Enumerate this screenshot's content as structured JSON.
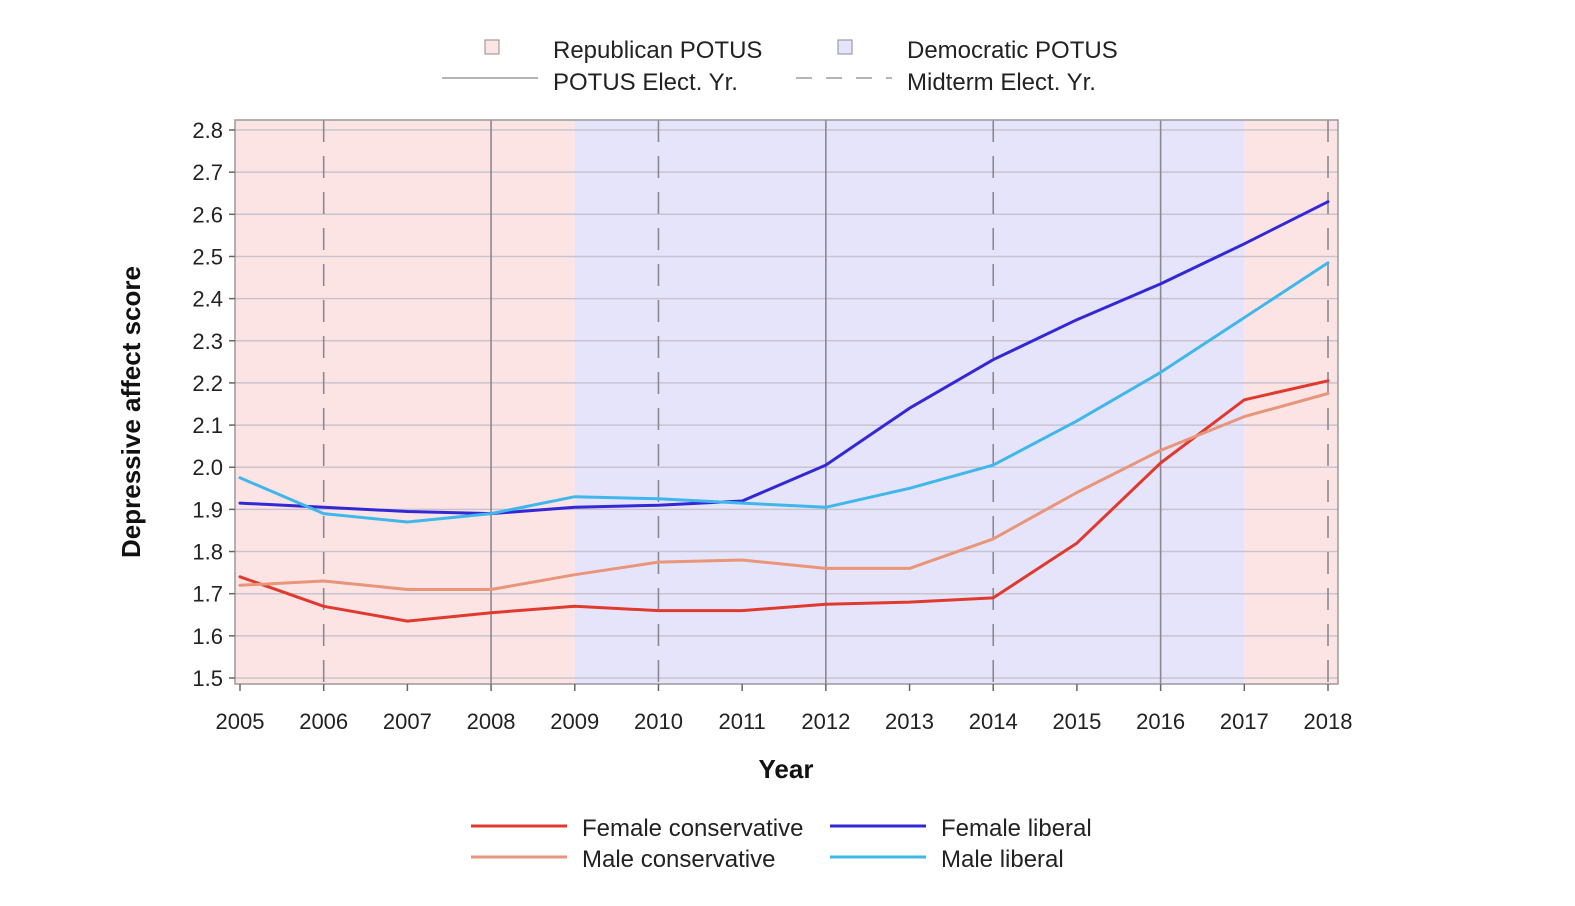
{
  "chart_data": {
    "type": "line",
    "title": "",
    "xlabel": "Year",
    "ylabel": "Depressive affect score",
    "x": [
      2005,
      2006,
      2007,
      2008,
      2009,
      2010,
      2011,
      2012,
      2013,
      2014,
      2015,
      2016,
      2017,
      2018
    ],
    "xlim": [
      2005,
      2018
    ],
    "ylim": [
      1.5,
      2.8
    ],
    "yticks": [
      "1.5",
      "1.6",
      "1.7",
      "1.8",
      "1.9",
      "2.0",
      "2.1",
      "2.2",
      "2.3",
      "2.4",
      "2.5",
      "2.6",
      "2.7",
      "2.8"
    ],
    "xticks": [
      "2005",
      "2006",
      "2007",
      "2008",
      "2009",
      "2010",
      "2011",
      "2012",
      "2013",
      "2014",
      "2015",
      "2016",
      "2017",
      "2018"
    ],
    "grid": true,
    "potus_periods": [
      {
        "party": "Republican",
        "from": 2005,
        "to": 2009,
        "color": "#fde4e4"
      },
      {
        "party": "Democratic",
        "from": 2009,
        "to": 2017,
        "color": "#e6e4fb"
      },
      {
        "party": "Republican",
        "from": 2017,
        "to": 2018,
        "color": "#fde4e4"
      }
    ],
    "potus_election_years": [
      2008,
      2012,
      2016
    ],
    "midterm_election_years": [
      2006,
      2010,
      2014,
      2018
    ],
    "series": [
      {
        "name": "Female conservative",
        "color": "#e03a2f",
        "values": [
          1.74,
          1.67,
          1.635,
          1.655,
          1.67,
          1.66,
          1.66,
          1.675,
          1.68,
          1.69,
          1.82,
          2.01,
          2.16,
          2.205
        ]
      },
      {
        "name": "Male conservative",
        "color": "#e8957a",
        "values": [
          1.72,
          1.73,
          1.71,
          1.71,
          1.745,
          1.775,
          1.78,
          1.76,
          1.76,
          1.83,
          1.94,
          2.04,
          2.12,
          2.175
        ]
      },
      {
        "name": "Female liberal",
        "color": "#3328d6",
        "values": [
          1.915,
          1.905,
          1.895,
          1.89,
          1.905,
          1.91,
          1.92,
          2.005,
          2.14,
          2.255,
          2.35,
          2.435,
          2.53,
          2.63
        ]
      },
      {
        "name": "Male liberal",
        "color": "#3fb7ea",
        "values": [
          1.975,
          1.89,
          1.87,
          1.89,
          1.93,
          1.925,
          1.915,
          1.905,
          1.95,
          2.005,
          2.11,
          2.225,
          2.355,
          2.485
        ]
      }
    ],
    "legend": {
      "placement": "top and bottom",
      "background_items": [
        {
          "label": "Republican POTUS",
          "color": "#fde4e4"
        },
        {
          "label": "Democratic POTUS",
          "color": "#e6e4fb"
        }
      ],
      "line_items": [
        {
          "label": "POTUS Elect. Yr.",
          "style": "solid"
        },
        {
          "label": "Midterm Elect. Yr.",
          "style": "dashed"
        }
      ]
    }
  }
}
